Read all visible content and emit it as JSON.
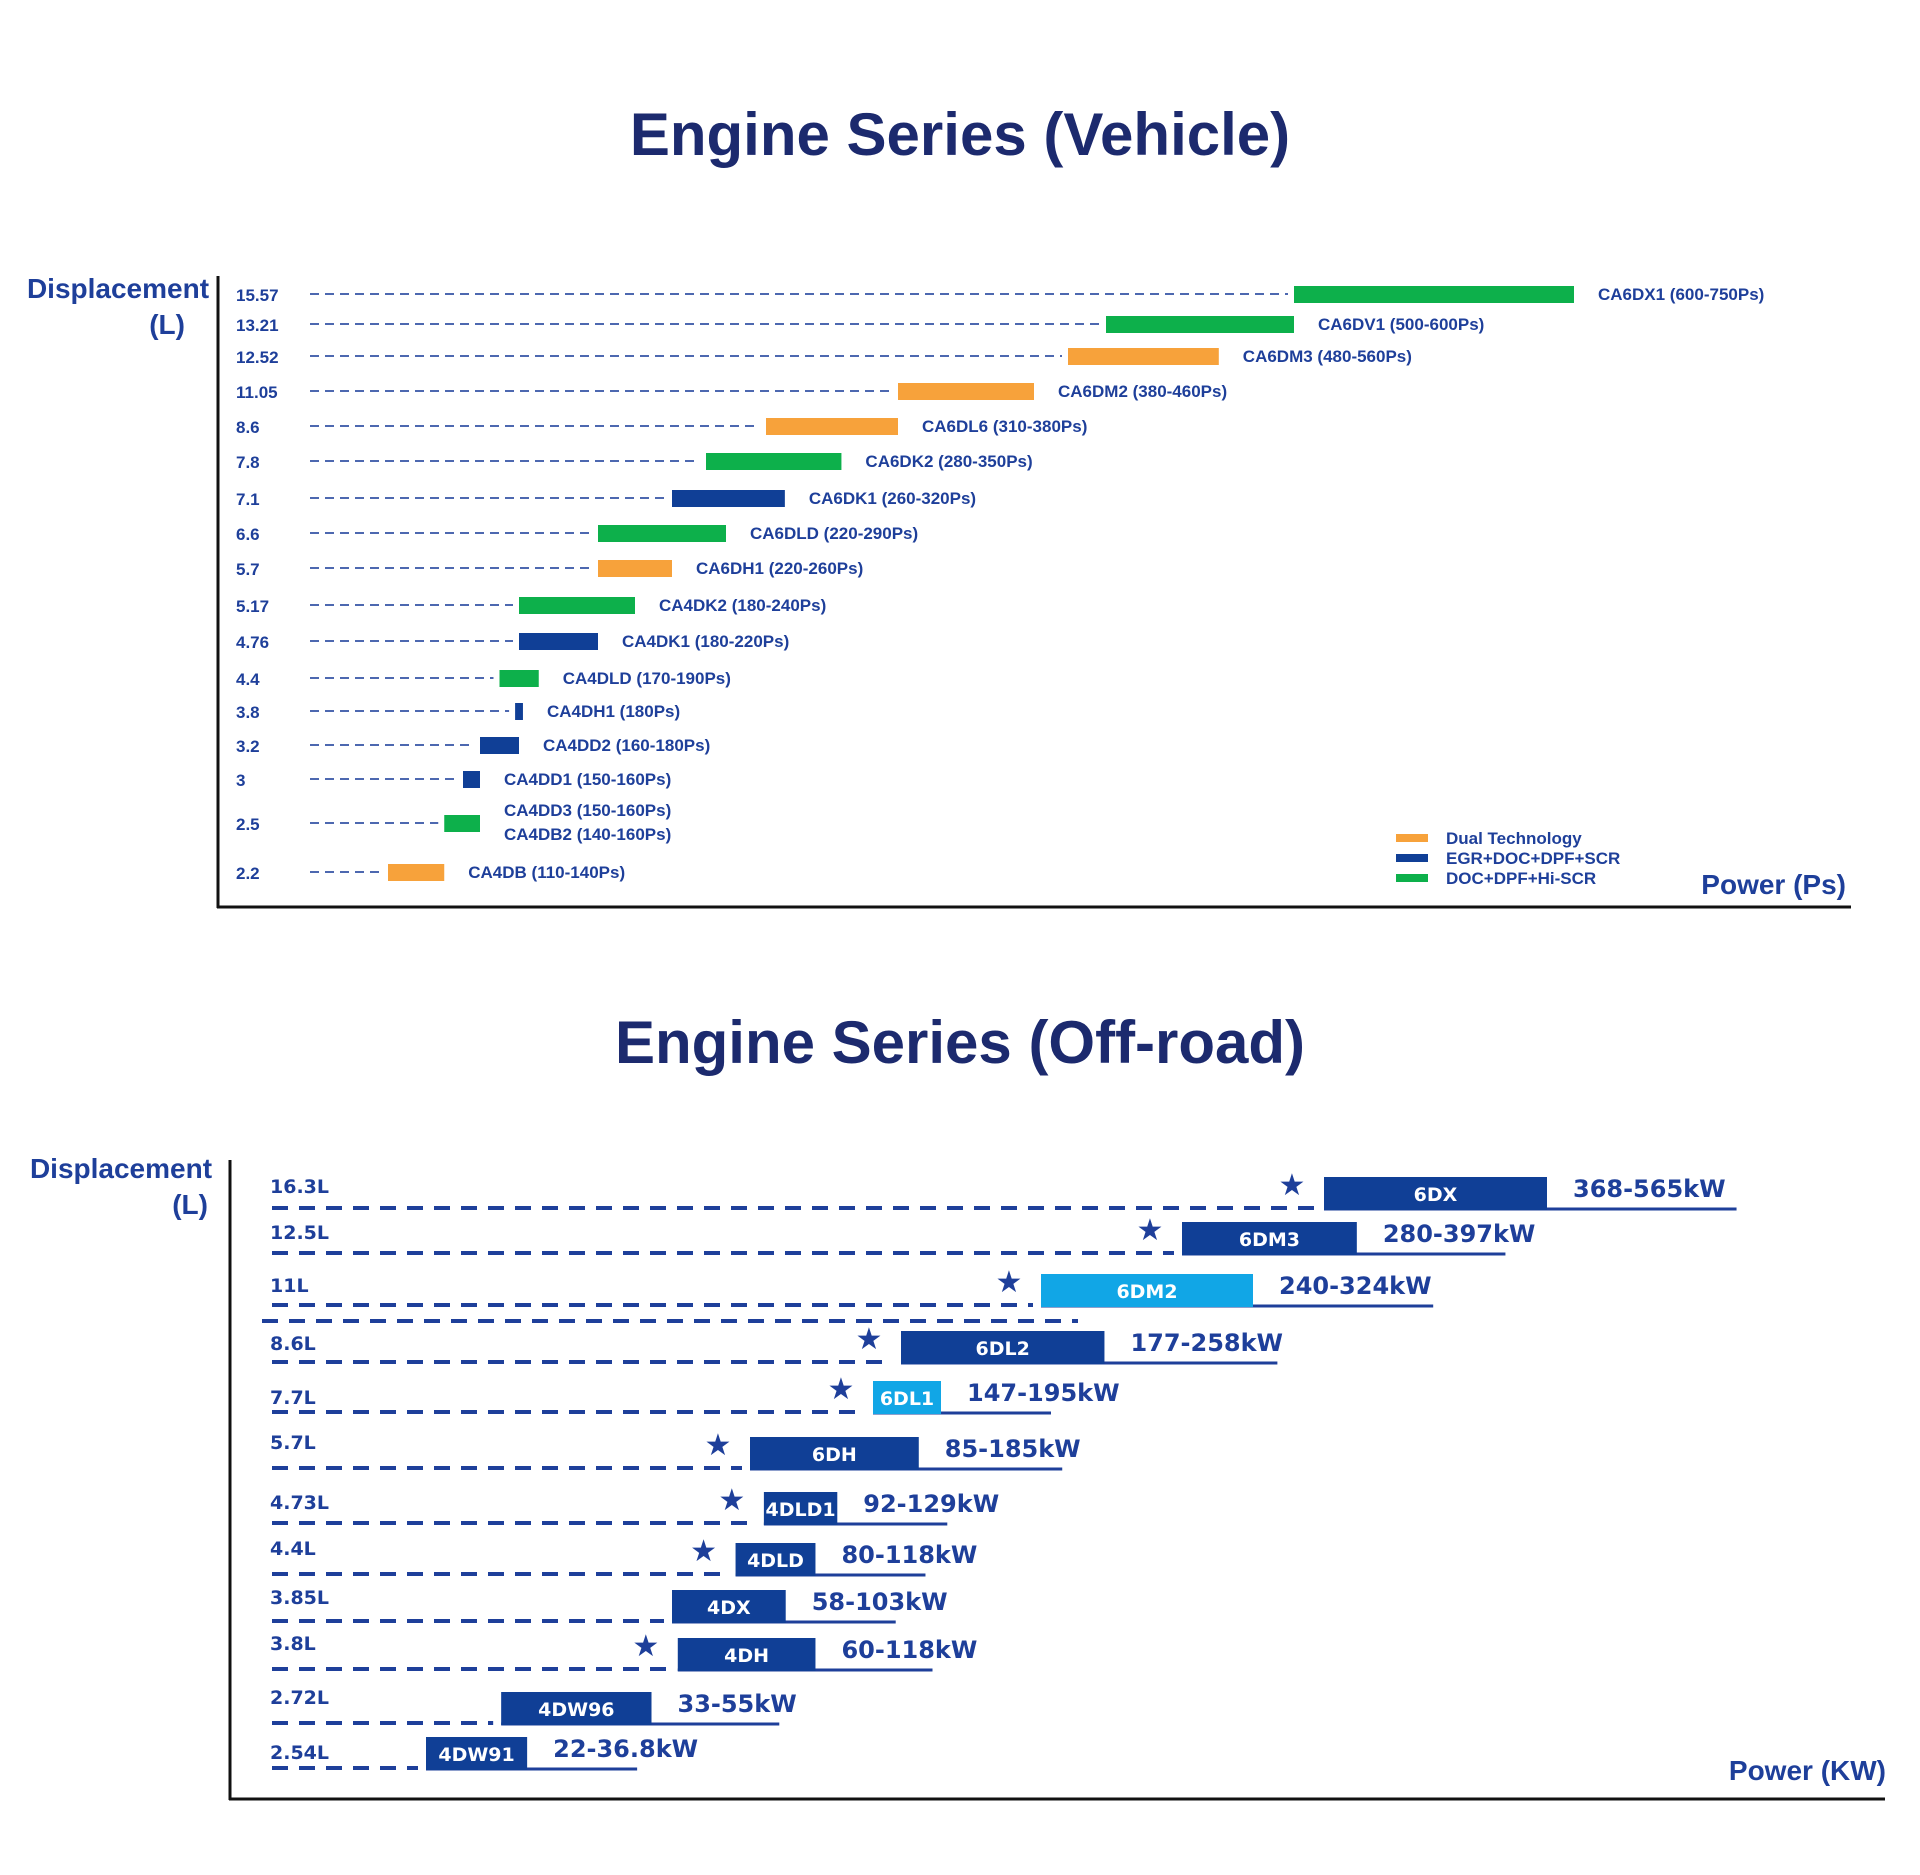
{
  "chart_data": [
    {
      "type": "bar",
      "title": "Engine Series (Vehicle)",
      "ylabel_line1": "Displacement",
      "ylabel_line2": "(L)",
      "xlabel": "Power (Ps)",
      "legend_position": "bottom-right",
      "legend": [
        {
          "label": "Dual Technology",
          "color": "#f7a23b"
        },
        {
          "label": "EGR+DOC+DPF+SCR",
          "color": "#103f96"
        },
        {
          "label": "DOC+DPF+Hi-SCR",
          "color": "#0db04b"
        }
      ],
      "rows": [
        {
          "displacement": "15.57",
          "labels": [
            "CA6DX1  (600-750Ps)"
          ],
          "min": 600,
          "max": 750,
          "tech": "DOC+DPF+Hi-SCR"
        },
        {
          "displacement": "13.21",
          "labels": [
            "CA6DV1  (500-600Ps)"
          ],
          "min": 500,
          "max": 600,
          "tech": "DOC+DPF+Hi-SCR"
        },
        {
          "displacement": "12.52",
          "labels": [
            "CA6DM3  (480-560Ps)"
          ],
          "min": 480,
          "max": 560,
          "tech": "Dual Technology"
        },
        {
          "displacement": "11.05",
          "labels": [
            "CA6DM2 (380-460Ps)"
          ],
          "min": 380,
          "max": 460,
          "tech": "Dual Technology"
        },
        {
          "displacement": "8.6",
          "labels": [
            "CA6DL6 (310-380Ps)"
          ],
          "min": 310,
          "max": 380,
          "tech": "Dual Technology"
        },
        {
          "displacement": "7.8",
          "labels": [
            "CA6DK2 (280-350Ps)"
          ],
          "min": 280,
          "max": 350,
          "tech": "DOC+DPF+Hi-SCR"
        },
        {
          "displacement": "7.1",
          "labels": [
            "CA6DK1 (260-320Ps)"
          ],
          "min": 260,
          "max": 320,
          "tech": "EGR+DOC+DPF+SCR"
        },
        {
          "displacement": "6.6",
          "labels": [
            "CA6DLD (220-290Ps)"
          ],
          "min": 220,
          "max": 290,
          "tech": "DOC+DPF+Hi-SCR"
        },
        {
          "displacement": "5.7",
          "labels": [
            "CA6DH1 (220-260Ps)"
          ],
          "min": 220,
          "max": 260,
          "tech": "Dual Technology"
        },
        {
          "displacement": "5.17",
          "labels": [
            "CA4DK2 (180-240Ps)"
          ],
          "min": 180,
          "max": 240,
          "tech": "DOC+DPF+Hi-SCR"
        },
        {
          "displacement": "4.76",
          "labels": [
            "CA4DK1 (180-220Ps)"
          ],
          "min": 180,
          "max": 220,
          "tech": "EGR+DOC+DPF+SCR"
        },
        {
          "displacement": "4.4",
          "labels": [
            "CA4DLD (170-190Ps)"
          ],
          "min": 170,
          "max": 190,
          "tech": "DOC+DPF+Hi-SCR"
        },
        {
          "displacement": "3.8",
          "labels": [
            "CA4DH1 (180Ps)"
          ],
          "min": 178,
          "max": 182,
          "tech": "EGR+DOC+DPF+SCR"
        },
        {
          "displacement": "3.2",
          "labels": [
            "CA4DD2 (160-180Ps)"
          ],
          "min": 160,
          "max": 180,
          "tech": "EGR+DOC+DPF+SCR"
        },
        {
          "displacement": "3",
          "labels": [
            "CA4DD1 (150-160Ps)"
          ],
          "min": 150,
          "max": 160,
          "tech": "EGR+DOC+DPF+SCR"
        },
        {
          "displacement": "2.5",
          "labels": [
            "CA4DD3 (150-160Ps)",
            "CA4DB2 (140-160Ps)"
          ],
          "min": 140,
          "max": 160,
          "tech": "DOC+DPF+Hi-SCR"
        },
        {
          "displacement": "2.2",
          "labels": [
            "CA4DB (110-140Ps)"
          ],
          "min": 110,
          "max": 140,
          "tech": "Dual Technology"
        }
      ]
    },
    {
      "type": "bar",
      "title": "Engine Series (Off-road)",
      "ylabel_line1": "Displacement",
      "ylabel_line2": "(L)",
      "xlabel": "Power (KW)",
      "colors": {
        "dark": "#103f96",
        "light": "#11a6e6"
      },
      "rows": [
        {
          "displacement": "16.3L",
          "name": "6DX",
          "range": "368-565kW",
          "min": 368,
          "max": 565,
          "star": true,
          "color": "dark"
        },
        {
          "displacement": "12.5L",
          "name": "6DM3",
          "range": "280-397kW",
          "min": 280,
          "max": 397,
          "star": true,
          "color": "dark"
        },
        {
          "displacement": "11L",
          "name": "6DM2",
          "range": "240-324kW",
          "min": 240,
          "max": 324,
          "star": true,
          "color": "light"
        },
        {
          "displacement": "8.6L",
          "name": "6DL2",
          "range": "177-258kW",
          "min": 177,
          "max": 258,
          "star": true,
          "color": "dark"
        },
        {
          "displacement": "7.7L",
          "name": "6DL1",
          "range": "147-195kW",
          "min": 147,
          "max": 195,
          "star": true,
          "color": "light"
        },
        {
          "displacement": "5.7L",
          "name": "6DH",
          "range": "85-185kW",
          "min": 85,
          "max": 185,
          "star": true,
          "color": "dark"
        },
        {
          "displacement": "4.73L",
          "name": "4DLD1",
          "range": "92-129kW",
          "min": 92,
          "max": 129,
          "star": true,
          "color": "dark"
        },
        {
          "displacement": "4.4L",
          "name": "4DLD",
          "range": "80-118kW",
          "min": 80,
          "max": 118,
          "star": true,
          "color": "dark"
        },
        {
          "displacement": "3.85L",
          "name": "4DX",
          "range": "58-103kW",
          "min": 58,
          "max": 103,
          "star": false,
          "color": "dark"
        },
        {
          "displacement": "3.8L",
          "name": "4DH",
          "range": "60-118kW",
          "min": 60,
          "max": 118,
          "star": true,
          "color": "dark"
        },
        {
          "displacement": "2.72L",
          "name": "4DW96",
          "range": "33-55kW",
          "min": 33,
          "max": 55,
          "star": false,
          "color": "dark"
        },
        {
          "displacement": "2.54L",
          "name": "4DW91",
          "range": "22-36.8kW",
          "min": 22,
          "max": 36.8,
          "star": false,
          "color": "dark"
        }
      ]
    }
  ]
}
